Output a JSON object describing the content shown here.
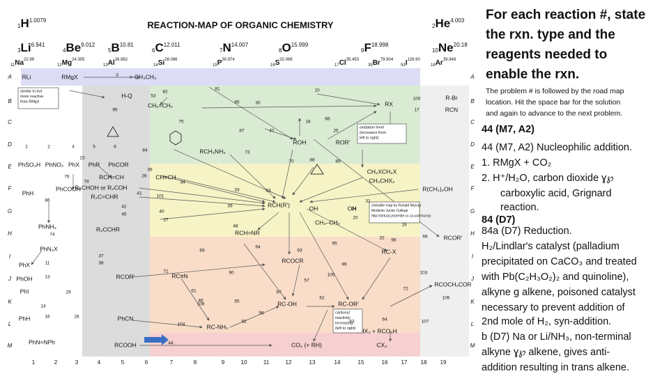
{
  "map": {
    "title": "REACTION-MAP OF ORGANIC CHEMISTRY",
    "elements": [
      {
        "number": "1",
        "symbol": "H",
        "mass": "1.0079"
      },
      {
        "number": "2",
        "symbol": "He",
        "mass": "4.003"
      },
      {
        "number": "3",
        "symbol": "Li",
        "mass": "6.941"
      },
      {
        "number": "4",
        "symbol": "Be",
        "mass": "9.012"
      },
      {
        "number": "5",
        "symbol": "B",
        "mass": "10.81"
      },
      {
        "number": "6",
        "symbol": "C",
        "mass": "12.011"
      },
      {
        "number": "7",
        "symbol": "N",
        "mass": "14.007"
      },
      {
        "number": "8",
        "symbol": "O",
        "mass": "15.999"
      },
      {
        "number": "9",
        "symbol": "F",
        "mass": "18.998"
      },
      {
        "number": "10",
        "symbol": "Ne",
        "mass": "20.18"
      },
      {
        "number": "11",
        "symbol": "Na",
        "mass": "22.99"
      },
      {
        "number": "12",
        "symbol": "Mg",
        "mass": "24.305"
      },
      {
        "number": "13",
        "symbol": "Al",
        "mass": "26.982"
      },
      {
        "number": "14",
        "symbol": "Si",
        "mass": "28.086"
      },
      {
        "number": "15",
        "symbol": "P",
        "mass": "30.974"
      },
      {
        "number": "16",
        "symbol": "S",
        "mass": "32.066"
      },
      {
        "number": "17",
        "symbol": "Cl",
        "mass": "35.453"
      },
      {
        "number": "35",
        "symbol": "Br",
        "mass": "79.904"
      },
      {
        "number": "53",
        "symbol": "I",
        "mass": "126.90"
      },
      {
        "number": "18",
        "symbol": "Ar",
        "mass": "39.948"
      }
    ],
    "row_labels": [
      "A",
      "B",
      "C",
      "D",
      "E",
      "F",
      "G",
      "H",
      "I",
      "J",
      "K",
      "L",
      "M"
    ],
    "column_labels": [
      1,
      2,
      3,
      4,
      5,
      6,
      7,
      8,
      9,
      10,
      11,
      12,
      13,
      14,
      15,
      16,
      17,
      18,
      19
    ],
    "nodes": [
      "RLi",
      "RMgX",
      "> CH₃CH₃",
      "H-Q",
      "2 RCH(R')",
      "CH₂=CH₂",
      "RX",
      "R-Br",
      "RCN",
      "ROH",
      "ROR'",
      "RCH₂NH₂",
      "PhSO₃H",
      "PhNO₂",
      "PhX",
      "PhR",
      "PhCOR",
      "RCH=CH",
      "CH≡CH",
      "CH₂XCH₂X",
      "CH₃CHX₂",
      "R(CH₂)₂OH",
      "PhH",
      "PhCOOH",
      "R₂CHOH or R₃COH",
      "R₂C=CHR",
      "RCH(R')",
      "RCH=NR",
      "CH₂–CH₂",
      "PhNH₂",
      "R₂CCHR",
      "PhN₂X",
      "RCOCR",
      "RC-X",
      "RCOR'",
      "PhX",
      "PhOH",
      "PhI",
      "PhH",
      "PhN=NPh",
      "RCOR'",
      "RC≡N",
      "RC-OH",
      "RC-OR'",
      "RCOCH₂COR",
      "RC-NH₂",
      "PhCN",
      "RCOOH",
      "CO₂ (+ RH)",
      "CX₄",
      "CHX₃ + RCO₂H",
      "OH",
      "OH"
    ],
    "boxes": [
      [
        "similar to but",
        "more reactive",
        "than RMgX"
      ],
      [
        "oxidation level",
        "(increases from",
        "left to right)"
      ],
      [
        "clickable map by Ronald Murray",
        "Modesto Junior College",
        "http://virtual.yosemite.cc.ca.us/rmurray"
      ],
      [
        "carbonyl",
        "reactivity",
        "increasing",
        "(left to right)"
      ]
    ],
    "reaction_numbers": [
      3,
      81,
      10,
      53,
      82,
      100,
      17,
      85,
      30,
      96,
      75,
      87,
      47,
      18,
      68,
      25,
      84,
      73,
      88,
      89,
      23,
      70,
      26,
      34,
      33,
      83,
      101,
      31,
      24,
      20,
      42,
      45,
      27,
      37,
      38,
      95,
      93,
      94,
      98,
      69,
      66,
      99,
      105,
      71,
      61,
      46,
      90,
      109,
      55,
      97,
      57,
      62,
      56,
      92,
      72,
      104,
      106,
      107,
      103,
      11,
      13,
      14,
      16,
      28,
      29,
      86,
      74,
      76,
      78,
      44,
      36,
      41,
      40,
      39,
      48,
      19,
      32,
      63,
      64,
      1,
      2,
      4,
      5,
      6
    ]
  },
  "panel": {
    "heading": [
      "For each reaction #, state",
      "the rxn. type and the",
      "reagents needed to",
      "enable the rxn."
    ],
    "instructions": [
      "The problem # is followed by the road map",
      "location.  Hit the space bar for the solution",
      "and again to advance to the next problem."
    ],
    "lines": [
      "44  (M7, A2)",
      "44 (M7, A2)  Nucleophilic addition.",
      "1.  RMgX + CO₂",
      "2.  H⁺/H₂O, carbon dioxide ɣ℘",
      "carboxylic acid, Grignard",
      "reaction.",
      "84  (D7)",
      "84a (D7)   Reduction.",
      "H₂/Lindlar's catalyst (palladium",
      "precipitated on CaCO₃ and treated",
      "with Pb(C₂H₃O₂)₂ and quinoline),",
      "alkyne g alkene,  poisoned catalyst",
      "necessary to prevent addition of",
      "2nd mole of H₂, syn-addition.",
      "b (D7)  Na or Li/NH₃, non-terminal",
      "alkyne ɣ℘ alkene, gives anti-",
      "addition resulting in trans alkene."
    ]
  }
}
